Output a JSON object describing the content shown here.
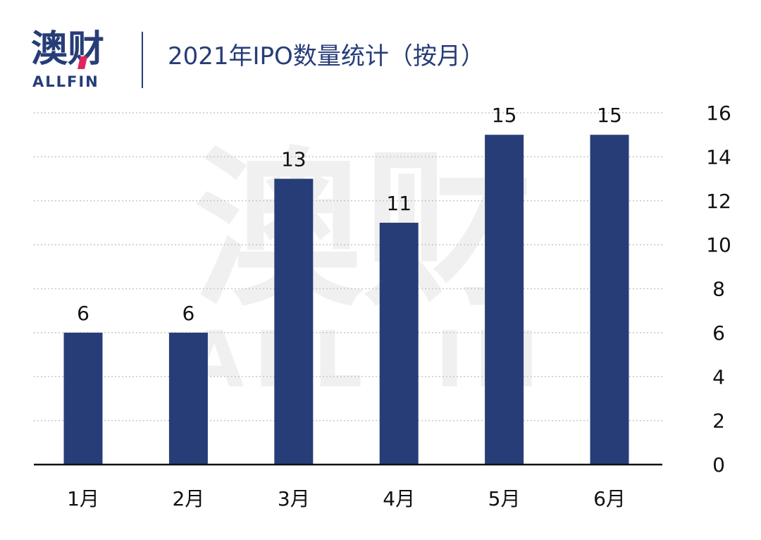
{
  "header": {
    "logo_cn": "澳财",
    "logo_en": "ALLFIN",
    "title": "2021年IPO数量统计（按月）"
  },
  "watermark": {
    "cn": "澳财",
    "en": "ALLFIN"
  },
  "colors": {
    "bar": "#273d77",
    "grid": "#c8c8c8",
    "axis": "#111111",
    "brand": "#273d77",
    "accent": "#e0245e"
  },
  "chart_data": {
    "type": "bar",
    "categories": [
      "1月",
      "2月",
      "3月",
      "4月",
      "5月",
      "6月"
    ],
    "values": [
      6,
      6,
      13,
      11,
      15,
      15
    ],
    "data_labels": [
      "6",
      "6",
      "13",
      "11",
      "15",
      "15"
    ],
    "title": "2021年IPO数量统计（按月）",
    "xlabel": "",
    "ylabel": "",
    "ylim": [
      0,
      16
    ],
    "yticks": [
      0,
      2,
      4,
      6,
      8,
      10,
      12,
      14,
      16
    ],
    "y_axis_side": "right",
    "grid": true
  }
}
